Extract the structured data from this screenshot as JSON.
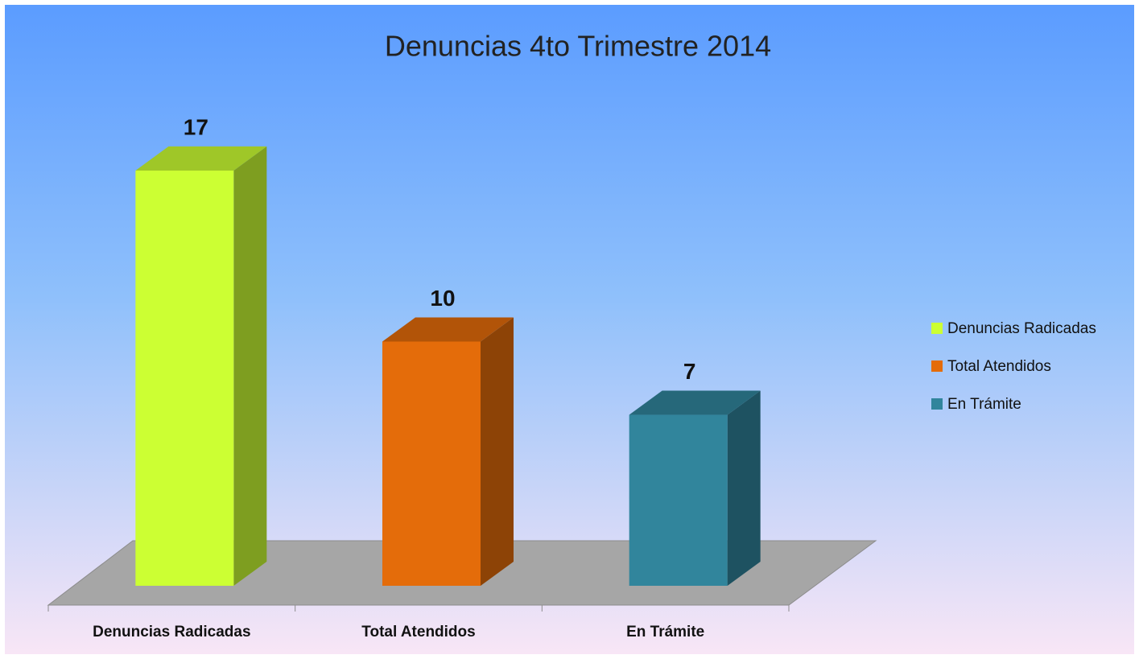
{
  "chart_data": {
    "type": "bar3d",
    "title": "Denuncias 4to Trimestre 2014",
    "categories": [
      "Denuncias Radicadas",
      "Total Atendidos",
      "En Trámite"
    ],
    "values": [
      17,
      10,
      7
    ],
    "colors": [
      "#ccff33",
      "#e46c0a",
      "#31859c"
    ],
    "legend": "right"
  }
}
